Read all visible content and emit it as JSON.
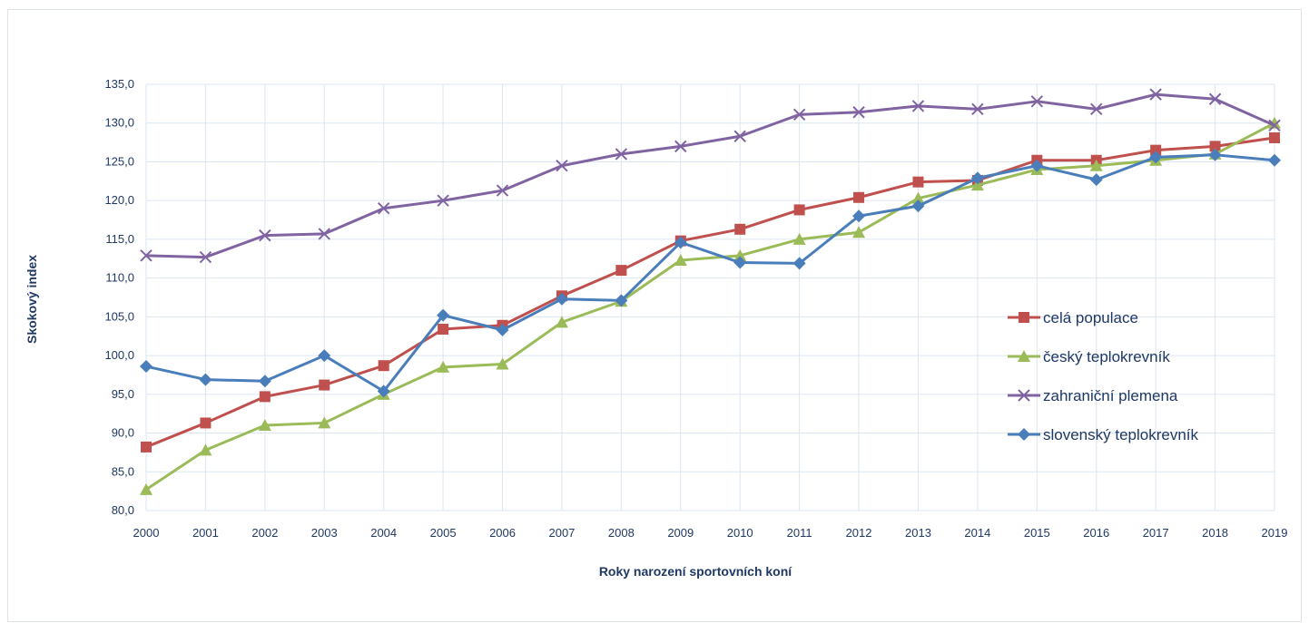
{
  "chart_data": {
    "type": "line",
    "title": "",
    "xlabel": "Roky narození sportovních koní",
    "ylabel": "Skokový index",
    "ylim": [
      80,
      135
    ],
    "yticks": [
      "80,0",
      "85,0",
      "90,0",
      "95,0",
      "100,0",
      "105,0",
      "110,0",
      "115,0",
      "120,0",
      "125,0",
      "130,0",
      "135,0"
    ],
    "categories": [
      "2000",
      "2001",
      "2002",
      "2003",
      "2004",
      "2005",
      "2006",
      "2007",
      "2008",
      "2009",
      "2010",
      "2011",
      "2012",
      "2013",
      "2014",
      "2015",
      "2016",
      "2017",
      "2018",
      "2019"
    ],
    "grid": true,
    "legend_position": "right",
    "series": [
      {
        "name": "celá populace",
        "color": "#c0504d",
        "marker": "square",
        "values": [
          88.2,
          91.3,
          94.7,
          96.2,
          98.7,
          103.4,
          103.9,
          107.7,
          111.0,
          114.8,
          116.3,
          118.8,
          120.4,
          122.4,
          122.6,
          125.2,
          125.2,
          126.5,
          127.0,
          128.1
        ]
      },
      {
        "name": "český teplokrevník",
        "color": "#9bbb59",
        "marker": "triangle",
        "values": [
          82.7,
          87.8,
          91.0,
          91.3,
          95.0,
          98.5,
          98.9,
          104.3,
          107.0,
          112.3,
          112.9,
          115.0,
          115.9,
          120.3,
          122.0,
          124.0,
          124.5,
          125.2,
          126.0,
          130.0
        ]
      },
      {
        "name": "zahraniční plemena",
        "color": "#8064a2",
        "marker": "x",
        "values": [
          112.9,
          112.7,
          115.5,
          115.7,
          119.0,
          120.0,
          121.3,
          124.5,
          126.0,
          127.0,
          128.3,
          131.1,
          131.4,
          132.2,
          131.8,
          132.8,
          131.8,
          133.7,
          133.1,
          129.7
        ]
      },
      {
        "name": "slovenský teplokrevník",
        "color": "#4a7ebb",
        "marker": "diamond",
        "values": [
          98.6,
          96.9,
          96.7,
          100.0,
          95.4,
          105.2,
          103.3,
          107.3,
          107.1,
          114.6,
          112.0,
          111.9,
          118.0,
          119.3,
          122.9,
          124.5,
          122.7,
          125.6,
          125.9,
          125.2
        ]
      }
    ]
  }
}
